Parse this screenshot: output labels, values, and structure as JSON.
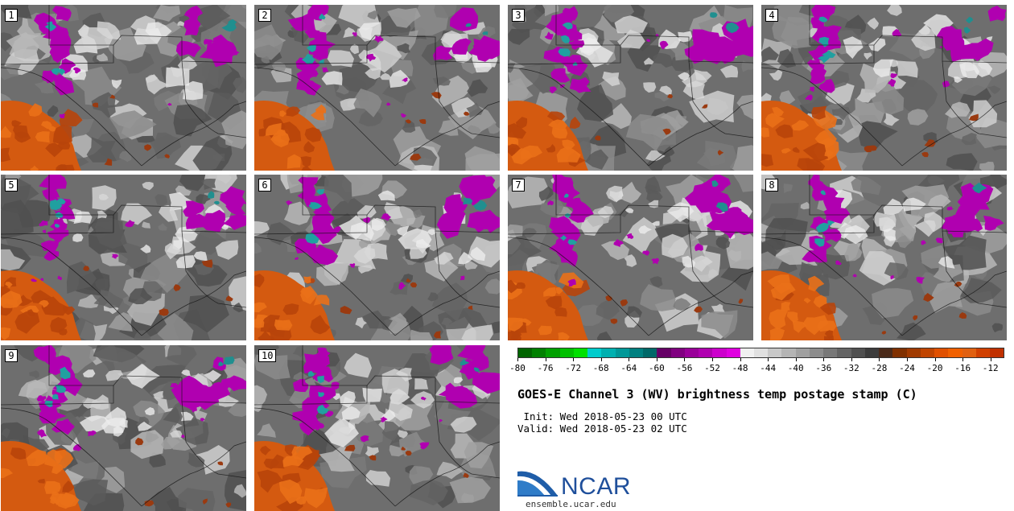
{
  "stamps": [
    {
      "label": "1"
    },
    {
      "label": "2"
    },
    {
      "label": "3"
    },
    {
      "label": "4"
    },
    {
      "label": "5"
    },
    {
      "label": "6"
    },
    {
      "label": "7"
    },
    {
      "label": "8"
    },
    {
      "label": "9"
    },
    {
      "label": "10"
    }
  ],
  "colorbar": {
    "colors": [
      "#006400",
      "#008000",
      "#00a000",
      "#00c000",
      "#00e000",
      "#00cccc",
      "#00b0b0",
      "#009898",
      "#008080",
      "#006868",
      "#660066",
      "#800080",
      "#990099",
      "#b000b0",
      "#cc00cc",
      "#e000e0",
      "#f0f0f0",
      "#e0e0e0",
      "#c8c8c8",
      "#b4b4b4",
      "#a0a0a0",
      "#8c8c8c",
      "#787878",
      "#646464",
      "#505050",
      "#3c3c3c",
      "#4a2a1a",
      "#803000",
      "#a03a00",
      "#c04400",
      "#e05000",
      "#f06000",
      "#e06010",
      "#d04000",
      "#c03000"
    ],
    "tick_labels": [
      "-80",
      "-76",
      "-72",
      "-68",
      "-64",
      "-60",
      "-56",
      "-52",
      "-48",
      "-44",
      "-40",
      "-36",
      "-32",
      "-28",
      "-24",
      "-20",
      "-16",
      "-12"
    ],
    "range": [
      -80,
      -10
    ]
  },
  "title": "GOES-E Channel 3 (WV) brightness temp postage stamp (C)",
  "init": " Init: Wed 2018-05-23 00 UTC",
  "valid": "Valid: Wed 2018-05-23 02 UTC",
  "logo": {
    "name": "NCAR",
    "url": "ensemble.ucar.edu"
  }
}
